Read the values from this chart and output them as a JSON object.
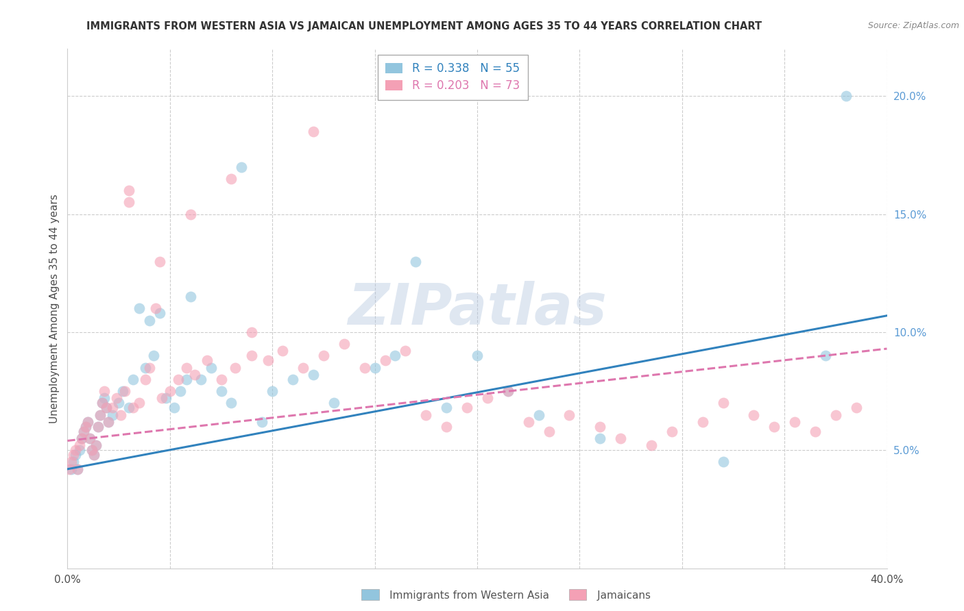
{
  "title": "IMMIGRANTS FROM WESTERN ASIA VS JAMAICAN UNEMPLOYMENT AMONG AGES 35 TO 44 YEARS CORRELATION CHART",
  "source": "Source: ZipAtlas.com",
  "ylabel": "Unemployment Among Ages 35 to 44 years",
  "x_min": 0.0,
  "x_max": 0.4,
  "y_min": 0.0,
  "y_max": 0.22,
  "watermark_text": "ZIPatlas",
  "watermark_color": "#b0c4de",
  "watermark_alpha": 0.4,
  "series1_color": "#92c5de",
  "series2_color": "#f4a0b5",
  "series1_label": "Immigrants from Western Asia",
  "series2_label": "Jamaicans",
  "series1_R": "0.338",
  "series1_N": "55",
  "series2_R": "0.203",
  "series2_N": "73",
  "series1_line_color": "#3182bd",
  "series2_line_color": "#de77ae",
  "legend_edge_color": "#aaaaaa",
  "grid_color": "#cccccc",
  "title_color": "#333333",
  "source_color": "#888888",
  "ylabel_color": "#4d4d4d",
  "xtick_color": "#4d4d4d",
  "ytick_color": "#5b9bd5",
  "series1_x": [
    0.002,
    0.003,
    0.004,
    0.005,
    0.006,
    0.007,
    0.008,
    0.009,
    0.01,
    0.011,
    0.012,
    0.013,
    0.014,
    0.015,
    0.016,
    0.017,
    0.018,
    0.019,
    0.02,
    0.022,
    0.025,
    0.027,
    0.03,
    0.032,
    0.035,
    0.038,
    0.04,
    0.042,
    0.045,
    0.048,
    0.052,
    0.055,
    0.058,
    0.06,
    0.065,
    0.07,
    0.075,
    0.08,
    0.085,
    0.095,
    0.1,
    0.11,
    0.12,
    0.13,
    0.15,
    0.16,
    0.17,
    0.185,
    0.2,
    0.215,
    0.23,
    0.26,
    0.32,
    0.37,
    0.38
  ],
  "series1_y": [
    0.042,
    0.045,
    0.048,
    0.042,
    0.05,
    0.055,
    0.058,
    0.06,
    0.062,
    0.055,
    0.05,
    0.048,
    0.052,
    0.06,
    0.065,
    0.07,
    0.072,
    0.068,
    0.062,
    0.065,
    0.07,
    0.075,
    0.068,
    0.08,
    0.11,
    0.085,
    0.105,
    0.09,
    0.108,
    0.072,
    0.068,
    0.075,
    0.08,
    0.115,
    0.08,
    0.085,
    0.075,
    0.07,
    0.17,
    0.062,
    0.075,
    0.08,
    0.082,
    0.07,
    0.085,
    0.09,
    0.13,
    0.068,
    0.09,
    0.075,
    0.065,
    0.055,
    0.045,
    0.09,
    0.2
  ],
  "series2_x": [
    0.001,
    0.002,
    0.003,
    0.004,
    0.005,
    0.006,
    0.007,
    0.008,
    0.009,
    0.01,
    0.011,
    0.012,
    0.013,
    0.014,
    0.015,
    0.016,
    0.017,
    0.018,
    0.019,
    0.02,
    0.022,
    0.024,
    0.026,
    0.028,
    0.03,
    0.032,
    0.035,
    0.038,
    0.04,
    0.043,
    0.046,
    0.05,
    0.054,
    0.058,
    0.062,
    0.068,
    0.075,
    0.082,
    0.09,
    0.098,
    0.105,
    0.115,
    0.125,
    0.135,
    0.145,
    0.155,
    0.165,
    0.175,
    0.185,
    0.195,
    0.205,
    0.215,
    0.225,
    0.235,
    0.245,
    0.26,
    0.27,
    0.285,
    0.295,
    0.31,
    0.32,
    0.335,
    0.345,
    0.355,
    0.365,
    0.375,
    0.385,
    0.03,
    0.06,
    0.09,
    0.12,
    0.08,
    0.045
  ],
  "series2_y": [
    0.042,
    0.045,
    0.048,
    0.05,
    0.042,
    0.052,
    0.055,
    0.058,
    0.06,
    0.062,
    0.055,
    0.05,
    0.048,
    0.052,
    0.06,
    0.065,
    0.07,
    0.075,
    0.068,
    0.062,
    0.068,
    0.072,
    0.065,
    0.075,
    0.155,
    0.068,
    0.07,
    0.08,
    0.085,
    0.11,
    0.072,
    0.075,
    0.08,
    0.085,
    0.082,
    0.088,
    0.08,
    0.085,
    0.09,
    0.088,
    0.092,
    0.085,
    0.09,
    0.095,
    0.085,
    0.088,
    0.092,
    0.065,
    0.06,
    0.068,
    0.072,
    0.075,
    0.062,
    0.058,
    0.065,
    0.06,
    0.055,
    0.052,
    0.058,
    0.062,
    0.07,
    0.065,
    0.06,
    0.062,
    0.058,
    0.065,
    0.068,
    0.16,
    0.15,
    0.1,
    0.185,
    0.165,
    0.13
  ]
}
